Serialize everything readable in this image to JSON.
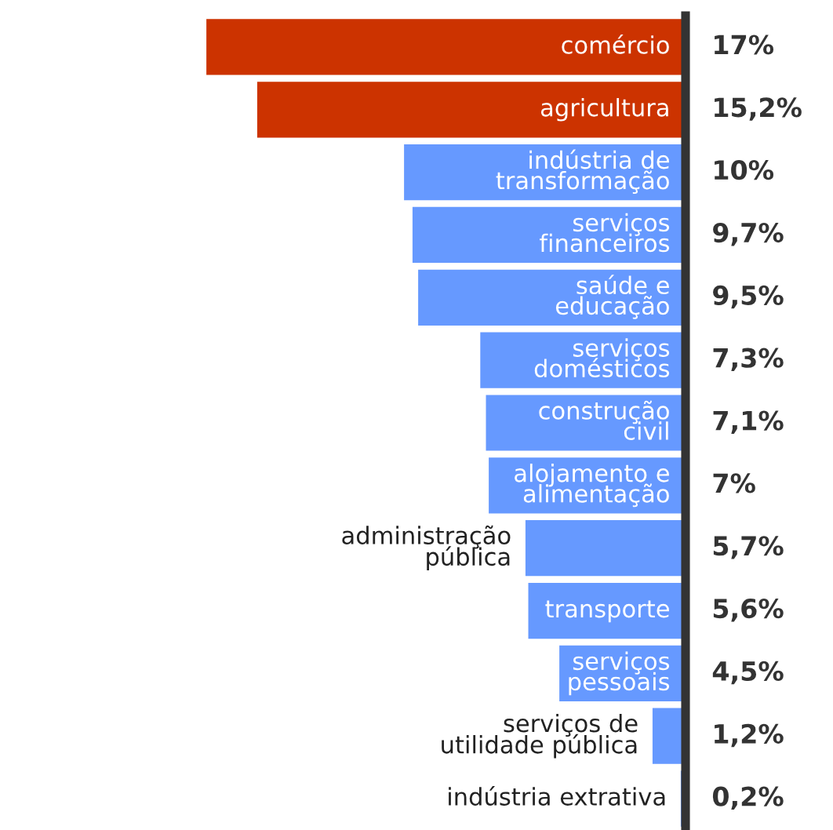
{
  "chart_data": {
    "type": "bar",
    "orientation": "horizontal",
    "categories": [
      "comércio",
      "agricultura",
      "indústria de\ntransformação",
      "serviços\nfinanceiros",
      "saúde e\neducação",
      "serviços\ndomésticos",
      "construção\ncivil",
      "alojamento e\nalimentação",
      "administração\npública",
      "transporte",
      "serviços\npessoais",
      "serviços de\nutilidade pública",
      "indústria extrativa"
    ],
    "values": [
      17,
      15.2,
      10,
      9.7,
      9.5,
      7.3,
      7.1,
      7,
      5.7,
      5.6,
      4.5,
      1.2,
      0.2
    ],
    "colors": [
      "#cc3300",
      "#cc3300",
      "#6699ff",
      "#6699ff",
      "#6699ff",
      "#6699ff",
      "#6699ff",
      "#6699ff",
      "#6699ff",
      "#6699ff",
      "#6699ff",
      "#6699ff",
      "#6699ff"
    ],
    "value_labels": [
      "17%",
      "15,2%",
      "10%",
      "9,7%",
      "9,5%",
      "7,3%",
      "7,1%",
      "7%",
      "5,7%",
      "5,6%",
      "4,5%",
      "1,2%",
      "0,2%"
    ],
    "data_labels": false
  }
}
